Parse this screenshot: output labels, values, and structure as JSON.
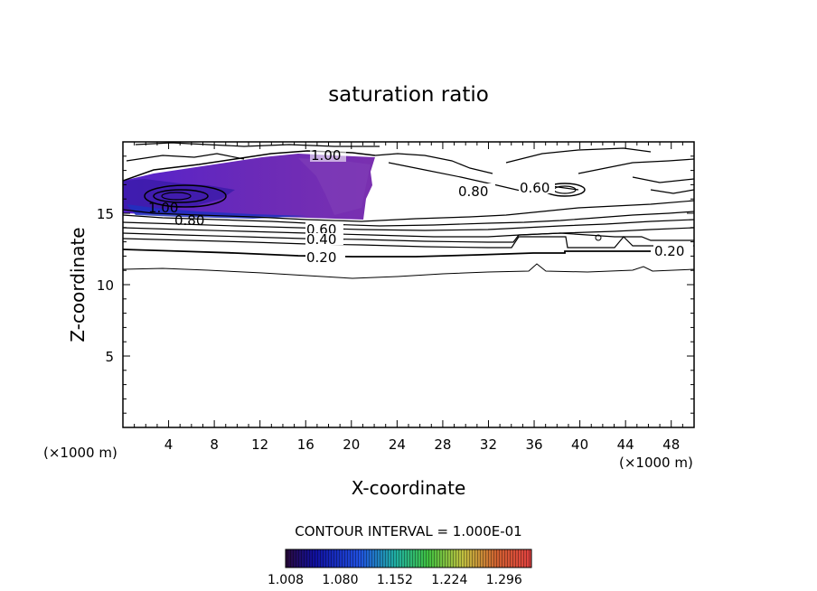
{
  "chart_data": {
    "type": "contour",
    "title": "saturation ratio",
    "xlabel": "X-coordinate",
    "ylabel": "Z-coordinate",
    "x_unit_left": "(×1000 m)",
    "x_unit_right": "(×1000 m)",
    "xlim": [
      0,
      50
    ],
    "ylim": [
      0,
      20
    ],
    "x_ticks": [
      4,
      8,
      12,
      16,
      20,
      24,
      28,
      32,
      36,
      40,
      44,
      48
    ],
    "y_ticks": [
      5,
      10,
      15
    ],
    "contour_interval_text": "CONTOUR INTERVAL = 1.000E-01",
    "colorbar": {
      "tick_labels": [
        "1.008",
        "1.080",
        "1.152",
        "1.224",
        "1.296"
      ],
      "min": 1.008,
      "max": 1.332,
      "colors": [
        "#2a0a3a",
        "#1010a0",
        "#2050e0",
        "#20b0a0",
        "#40c040",
        "#c0c040",
        "#d06030",
        "#e04040"
      ]
    },
    "contour_labels": [
      {
        "text": "1.00",
        "x": 16.8,
        "y": 18.8
      },
      {
        "text": "1.00",
        "x": 3.2,
        "y": 15.3
      },
      {
        "text": "0.80",
        "x": 5.9,
        "y": 14.6
      },
      {
        "text": "0.80",
        "x": 31.0,
        "y": 16.3
      },
      {
        "text": "0.60",
        "x": 35.9,
        "y": 16.5
      },
      {
        "text": "0.60",
        "x": 17.2,
        "y": 13.7
      },
      {
        "text": "0.40",
        "x": 17.2,
        "y": 13.2
      },
      {
        "text": "0.20",
        "x": 17.2,
        "y": 11.8
      },
      {
        "text": "0.20",
        "x": 48.0,
        "y": 12.3
      }
    ]
  }
}
